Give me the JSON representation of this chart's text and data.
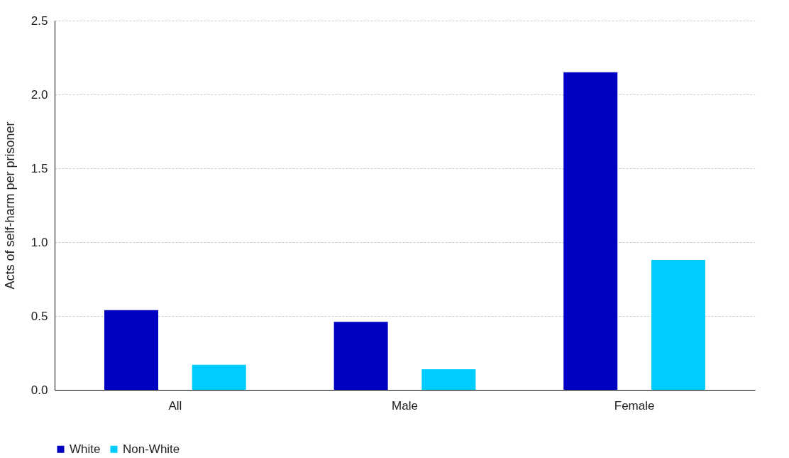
{
  "chart_data": {
    "type": "bar",
    "ylabel": "Acts of self-harm per prisoner",
    "categories": [
      "All",
      "Male",
      "Female"
    ],
    "series": [
      {
        "name": "White",
        "color": "#0000c0",
        "values": [
          0.54,
          0.46,
          2.15
        ]
      },
      {
        "name": "Non-White",
        "color": "#00ccff",
        "values": [
          0.17,
          0.14,
          0.88
        ]
      }
    ],
    "ylim": [
      0,
      2.5
    ],
    "yticks": [
      {
        "value": 0,
        "label": "0.0"
      },
      {
        "value": 0.5,
        "label": "0.5"
      },
      {
        "value": 1,
        "label": "1.0"
      },
      {
        "value": 1.5,
        "label": "1.5"
      },
      {
        "value": 2,
        "label": "2.0"
      },
      {
        "value": 2.5,
        "label": "2.5"
      }
    ],
    "grid": "y",
    "legend": "bottom"
  }
}
